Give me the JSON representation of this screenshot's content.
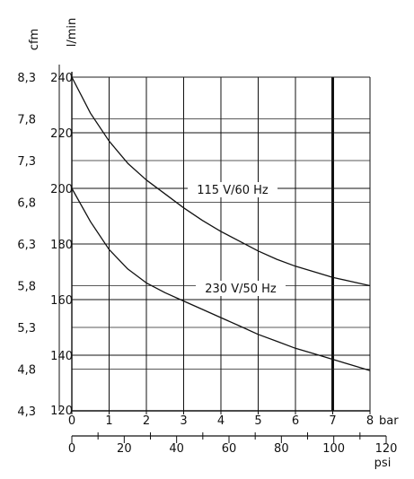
{
  "chart_data": {
    "type": "line",
    "x_axis_bar": {
      "label": "bar",
      "range": [
        0,
        8
      ],
      "ticks": [
        "0",
        "1",
        "2",
        "3",
        "4",
        "5",
        "6",
        "7",
        "8"
      ]
    },
    "x_axis_psi": {
      "label": "psi",
      "range": [
        0,
        120
      ],
      "ticks": [
        "0",
        "20",
        "40",
        "60",
        "80",
        "100",
        "120"
      ],
      "minor_ticks": [
        10,
        30,
        50,
        70,
        90,
        110
      ]
    },
    "y_axis_lmin": {
      "label": "l/min",
      "range": [
        120,
        240
      ],
      "ticks": [
        "120",
        "140",
        "160",
        "180",
        "200",
        "220",
        "240"
      ]
    },
    "y_axis_cfm": {
      "label": "cfm",
      "ticks": [
        "4,3",
        "4,8",
        "5,3",
        "5,8",
        "6,3",
        "6,8",
        "7,3",
        "7,8",
        "8,3"
      ],
      "tick_lmin": [
        120,
        135,
        150,
        165,
        180,
        195,
        210,
        225,
        240
      ]
    },
    "highlight_x": 7,
    "grid": true,
    "series": [
      {
        "name": "115 V/60 Hz",
        "x": [
          0,
          0.5,
          1,
          1.5,
          2,
          2.5,
          3,
          3.5,
          4,
          4.5,
          5,
          5.5,
          6,
          6.5,
          7,
          7.5,
          8
        ],
        "y": [
          240,
          227,
          217,
          209,
          203,
          198,
          193,
          188.5,
          184.5,
          181,
          177.5,
          174.5,
          172,
          170,
          168,
          166.5,
          165
        ]
      },
      {
        "name": "230 V/50 Hz",
        "x": [
          0,
          0.5,
          1,
          1.5,
          2,
          2.5,
          3,
          3.5,
          4,
          4.5,
          5,
          5.5,
          6,
          6.5,
          7,
          7.5,
          8
        ],
        "y": [
          200,
          188,
          178,
          171,
          166,
          162.5,
          159.5,
          156.5,
          153.5,
          150.5,
          147.5,
          145,
          142.5,
          140.5,
          138.5,
          136.5,
          134.5
        ]
      }
    ]
  }
}
